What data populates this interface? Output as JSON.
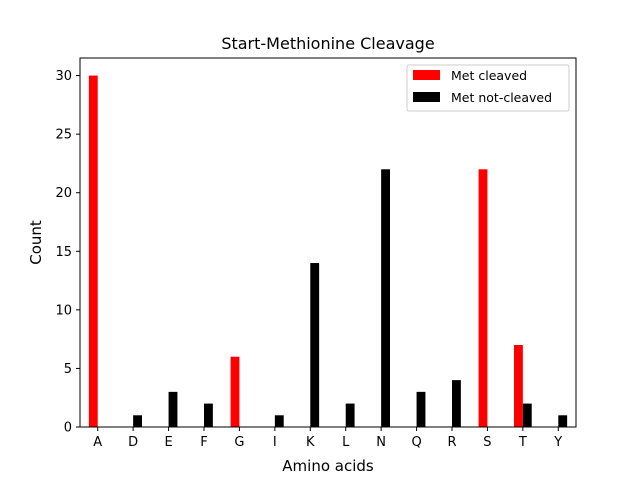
{
  "chart_data": {
    "type": "bar",
    "title": "Start-Methionine Cleavage",
    "xlabel": "Amino acids",
    "ylabel": "Count",
    "categories": [
      "A",
      "D",
      "E",
      "F",
      "G",
      "I",
      "K",
      "L",
      "N",
      "Q",
      "R",
      "S",
      "T",
      "Y"
    ],
    "series": [
      {
        "name": "Met cleaved",
        "color": "#ff0000",
        "values": [
          30,
          0,
          0,
          0,
          6,
          0,
          0,
          0,
          0,
          0,
          0,
          22,
          7,
          0
        ]
      },
      {
        "name": "Met not-cleaved",
        "color": "#000000",
        "values": [
          0,
          1,
          3,
          2,
          0,
          1,
          14,
          2,
          22,
          3,
          4,
          0,
          2,
          1
        ]
      }
    ],
    "ylim": [
      0,
      31.5
    ],
    "yticks": [
      0,
      5,
      10,
      15,
      20,
      25,
      30
    ],
    "grid": false,
    "legend_position": "top-right"
  }
}
